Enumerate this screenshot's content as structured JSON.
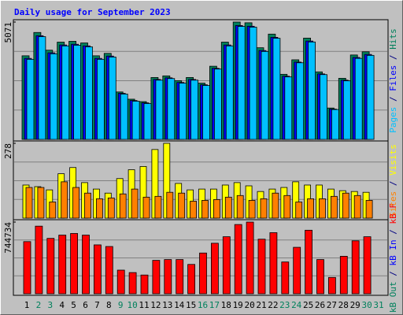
{
  "chart_data": [
    {
      "type": "bar",
      "title": "Daily usage for September 2023",
      "ylim": [
        0,
        5071
      ],
      "yticks": [
        5071
      ],
      "legend_separator": " / ",
      "series": [
        {
          "name": "Hits",
          "color": "#00805c",
          "values": [
            3612,
            4620,
            3855,
            4203,
            4238,
            4168,
            3612,
            3717,
            2049,
            1737,
            1632,
            2675,
            2744,
            2536,
            2675,
            2431,
            3161,
            4203,
            5071,
            5040,
            3960,
            4550,
            2813,
            3439,
            4377,
            2918,
            1355,
            2640,
            3647,
            3786,
            null
          ]
        },
        {
          "name": "Files",
          "color": "#0000ff",
          "values": [
            3500,
            4480,
            3740,
            4080,
            4110,
            4040,
            3500,
            3600,
            1990,
            1680,
            1580,
            2590,
            2660,
            2460,
            2590,
            2360,
            3070,
            4080,
            4920,
            4890,
            3840,
            4410,
            2730,
            3340,
            4250,
            2830,
            1310,
            2560,
            3540,
            3670,
            null
          ]
        },
        {
          "name": "Pages",
          "color": "#00c0ff",
          "values": [
            3460,
            4440,
            3700,
            4040,
            4070,
            4000,
            3460,
            3560,
            1960,
            1650,
            1550,
            2560,
            2630,
            2430,
            2560,
            2330,
            3040,
            4040,
            4880,
            4850,
            3800,
            4370,
            2700,
            3310,
            4210,
            2800,
            1290,
            2530,
            3500,
            3630,
            null
          ]
        }
      ]
    },
    {
      "type": "bar",
      "ylim": [
        0,
        278
      ],
      "yticks": [
        278
      ],
      "legend_separator": " / ",
      "series": [
        {
          "name": "Visits",
          "color": "#ffff00",
          "values": [
            123,
            117,
            105,
            165,
            188,
            132,
            108,
            93,
            147,
            180,
            192,
            255,
            278,
            129,
            105,
            108,
            108,
            123,
            132,
            120,
            99,
            108,
            114,
            135,
            123,
            123,
            108,
            102,
            99,
            96,
            null
          ]
        },
        {
          "name": "Sites",
          "color": "#ff8000",
          "values": [
            114,
            114,
            60,
            135,
            114,
            93,
            72,
            75,
            90,
            108,
            78,
            81,
            96,
            93,
            63,
            66,
            69,
            78,
            84,
            66,
            72,
            93,
            84,
            60,
            72,
            72,
            81,
            93,
            84,
            66,
            null
          ]
        }
      ]
    },
    {
      "type": "bar",
      "ylim": [
        0,
        744734
      ],
      "yticks": [
        744734
      ],
      "legend_separator": " / ",
      "categories": [
        "1",
        "2",
        "3",
        "4",
        "5",
        "6",
        "7",
        "8",
        "9",
        "10",
        "11",
        "12",
        "13",
        "14",
        "15",
        "16",
        "17",
        "18",
        "19",
        "20",
        "21",
        "22",
        "23",
        "24",
        "25",
        "26",
        "27",
        "28",
        "29",
        "30",
        "31"
      ],
      "category_colors": [
        "#000000",
        "#00805c",
        "#00805c",
        "#000000",
        "#000000",
        "#000000",
        "#000000",
        "#000000",
        "#00805c",
        "#00805c",
        "#000000",
        "#000000",
        "#000000",
        "#000000",
        "#000000",
        "#00805c",
        "#00805c",
        "#000000",
        "#000000",
        "#000000",
        "#000000",
        "#000000",
        "#00805c",
        "#00805c",
        "#000000",
        "#000000",
        "#000000",
        "#000000",
        "#000000",
        "#00805c",
        "#00805c"
      ],
      "series": [
        {
          "name": "kB F",
          "color": "#ff0000",
          "values": [
            541600,
            702400,
            575500,
            609300,
            626300,
            609300,
            507800,
            490900,
            245400,
            220000,
            194600,
            347000,
            355400,
            355400,
            304700,
            423200,
            524700,
            592400,
            719400,
            744734,
            567000,
            634700,
            330100,
            482400,
            660100,
            355400,
            169300,
            389300,
            550100,
            592400,
            null
          ]
        },
        {
          "name": "kB In",
          "color": "#0000ff",
          "values": [
            0,
            0,
            0,
            0,
            0,
            0,
            0,
            0,
            0,
            0,
            0,
            0,
            0,
            0,
            0,
            0,
            0,
            0,
            0,
            0,
            0,
            0,
            0,
            0,
            0,
            0,
            0,
            0,
            0,
            0,
            null
          ]
        },
        {
          "name": "kB Out",
          "color": "#00805c",
          "values": [
            0,
            0,
            0,
            0,
            0,
            0,
            0,
            0,
            0,
            0,
            0,
            0,
            0,
            0,
            0,
            0,
            0,
            0,
            0,
            0,
            0,
            0,
            0,
            0,
            0,
            0,
            0,
            0,
            0,
            0,
            null
          ]
        }
      ]
    }
  ]
}
